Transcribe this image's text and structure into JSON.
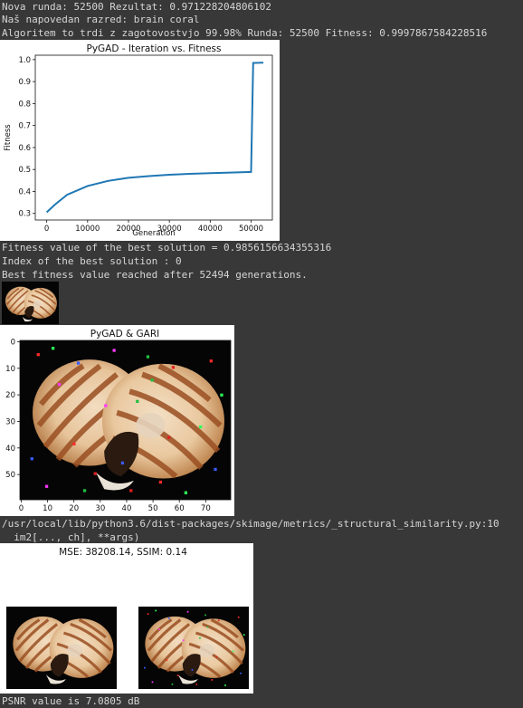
{
  "console_top": [
    "Nova runda: 52500 Rezultat: 0.971228204806102",
    "Naš napovedan razred: brain coral",
    "Algoritem to trdi z zagotovostvjo 99.98% Runda: 52500 Fitness: 0.9997867584228516"
  ],
  "console_mid": [
    "Fitness value of the best solution = 0.9856156634355316",
    "Index of the best solution : 0",
    "Best fitness value reached after 52494 generations."
  ],
  "console_warn": [
    "/usr/local/lib/python3.6/dist-packages/skimage/metrics/_structural_similarity.py:10",
    "  im2[..., ch], **args)"
  ],
  "console_bottom": "PSNR value is 7.0805 dB",
  "colors": {
    "background": "#383838",
    "text": "#d6d6d6",
    "line": "#1f77b4"
  },
  "chart_data": [
    {
      "type": "line",
      "title": "PyGAD - Iteration vs. Fitness",
      "xlabel": "Generation",
      "ylabel": "Fitness",
      "xlim": [
        -2800,
        55200
      ],
      "ylim": [
        0.27,
        1.02
      ],
      "xticks": [
        "0",
        "10000",
        "20000",
        "30000",
        "40000",
        "50000"
      ],
      "yticks": [
        "0.3",
        "0.4",
        "0.5",
        "0.6",
        "0.7",
        "0.8",
        "0.9",
        "1.0"
      ],
      "series": [
        {
          "x": [
            0,
            2000,
            5000,
            10000,
            15000,
            20000,
            25000,
            30000,
            35000,
            40000,
            45000,
            50000,
            50500,
            51000,
            52494,
            53000
          ],
          "y": [
            0.305,
            0.34,
            0.385,
            0.425,
            0.448,
            0.462,
            0.47,
            0.476,
            0.48,
            0.483,
            0.486,
            0.489,
            0.985,
            0.985,
            0.9856,
            0.9856
          ]
        }
      ]
    },
    {
      "type": "image",
      "title": "PyGAD & GARI",
      "xticks": [
        "0",
        "10",
        "20",
        "30",
        "40",
        "50",
        "60",
        "70"
      ],
      "yticks": [
        "0",
        "10",
        "20",
        "30",
        "40",
        "50"
      ]
    }
  ],
  "comparison": {
    "title": "MSE: 38208.14, SSIM: 0.14"
  }
}
